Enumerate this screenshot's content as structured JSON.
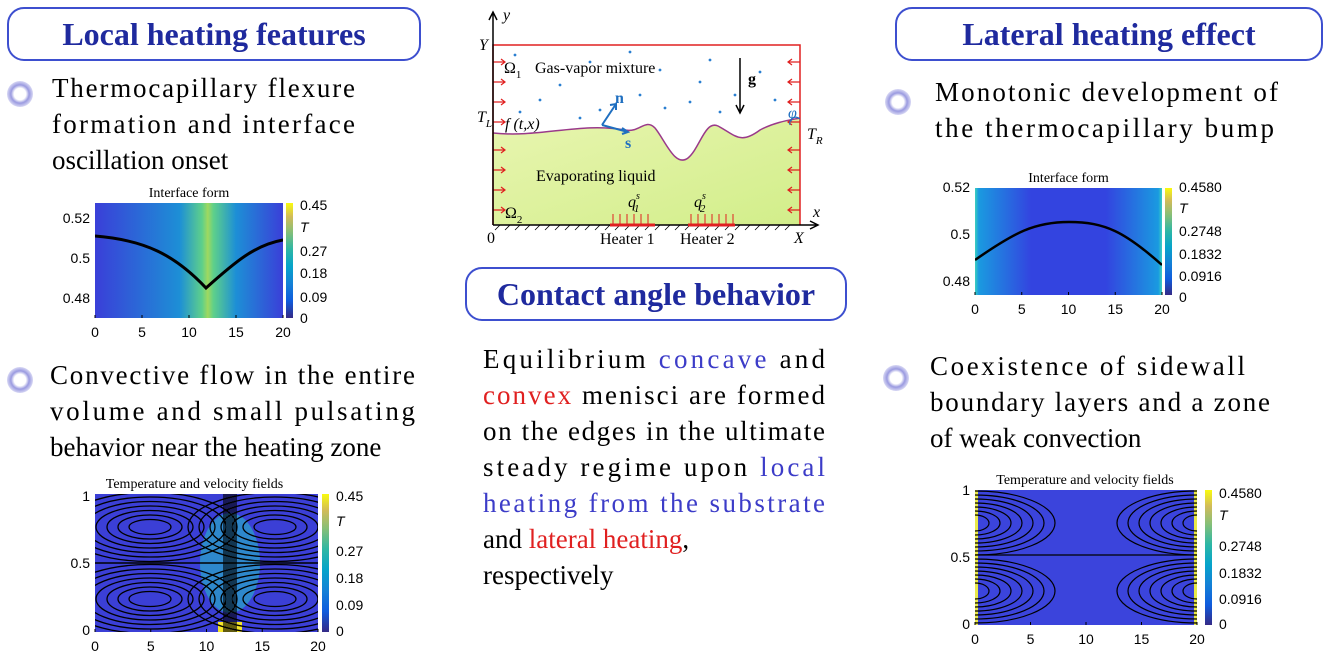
{
  "left": {
    "heading": "Local heating features",
    "items": [
      {
        "lines": [
          "Thermocapillary flexure",
          "formation  and interface",
          "oscillation onset"
        ],
        "plot": {
          "title": "Interface form",
          "xticks": [
            "0",
            "5",
            "10",
            "15",
            "20"
          ],
          "yticks": [
            "0.52",
            "0.5",
            "0.48"
          ],
          "colorbar": {
            "label": "T",
            "ticks": [
              "0.45",
              "0.27",
              "0.18",
              "0.09",
              "0"
            ]
          }
        }
      },
      {
        "lines": [
          "Convective flow in the entire",
          "volume  and  small  pulsating",
          "behavior near the heating zone"
        ],
        "plot": {
          "title": "Temperature and velocity fields",
          "xticks": [
            "0",
            "5",
            "10",
            "15",
            "20"
          ],
          "yticks": [
            "1",
            "0.5",
            "0"
          ],
          "colorbar": {
            "label": "T",
            "ticks": [
              "0.45",
              "0.27",
              "0.18",
              "0.09",
              "0"
            ]
          }
        }
      }
    ]
  },
  "center": {
    "diagram": {
      "y_axis": "y",
      "Y": "Y",
      "omega1": {
        "base": "Ω",
        "sub": "1"
      },
      "gas": "Gas-vapor mixture",
      "g": "g",
      "n": "n",
      "s": "s",
      "TL": {
        "base": "T",
        "sub": "L"
      },
      "f": "f (t,x)",
      "phi": "φ",
      "TR": {
        "base": "T",
        "sub": "R"
      },
      "liquid": "Evaporating liquid",
      "omega2": {
        "base": "Ω",
        "sub": "2"
      },
      "q1": {
        "base": "q",
        "sub": "1",
        "sup": "s"
      },
      "q2": {
        "base": "q",
        "sub": "2",
        "sup": "s"
      },
      "x_axis": "x",
      "origin": "0",
      "heater1": "Heater 1",
      "heater2": "Heater 2",
      "X": "X"
    },
    "heading": "Contact angle behavior",
    "lines": [
      [
        {
          "text": "Equilibrium "
        },
        {
          "text": "concave",
          "color": "#3c3cc8"
        },
        {
          "text": " and"
        }
      ],
      [
        {
          "text": "convex",
          "color": "#e02020"
        },
        {
          "text": " menisci are formed"
        }
      ],
      [
        {
          "text": "on the edges in the ultimate"
        }
      ],
      [
        {
          "text": "steady regime upon "
        },
        {
          "text": "local",
          "color": "#3c3cc8"
        }
      ],
      [
        {
          "text": "heating from the substrate",
          "color": "#3c3cc8"
        }
      ],
      [
        {
          "text": "and "
        },
        {
          "text": "lateral heating",
          "color": "#e02020"
        },
        {
          "text": ","
        }
      ],
      [
        {
          "text": "respectively"
        }
      ]
    ]
  },
  "right": {
    "heading": "Lateral heating effect",
    "items": [
      {
        "lines": [
          "Monotonic development of",
          "the  thermocapillary  bump"
        ],
        "plot": {
          "title": "Interface form",
          "xticks": [
            "0",
            "5",
            "10",
            "15",
            "20"
          ],
          "yticks": [
            "0.52",
            "0.5",
            "0.48"
          ],
          "colorbar": {
            "label": "T",
            "ticks": [
              "0.4580",
              "0.2748",
              "0.1832",
              "0.0916",
              "0"
            ]
          }
        }
      },
      {
        "lines": [
          "Coexistence  of  sidewall",
          "boundary layers and a zone",
          "of weak convection"
        ],
        "plot": {
          "title": "Temperature and velocity fields",
          "xticks": [
            "0",
            "5",
            "10",
            "15",
            "20"
          ],
          "yticks": [
            "1",
            "0.5",
            "0"
          ],
          "colorbar": {
            "label": "T",
            "ticks": [
              "0.4580",
              "0.2748",
              "0.1832",
              "0.0916",
              "0"
            ]
          }
        }
      }
    ]
  }
}
